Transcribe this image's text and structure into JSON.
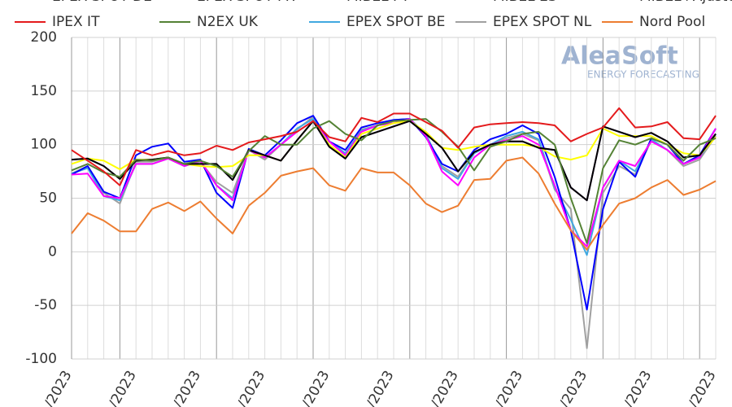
{
  "chart_data": {
    "type": "line",
    "logo": {
      "name": "AleaSoft",
      "tagline": "ENERGY FORECASTING"
    },
    "categories": [
      "/2023",
      null,
      null,
      null,
      "/2023",
      null,
      null,
      null,
      "/2023",
      null,
      null,
      null,
      "/2023",
      null,
      null,
      null,
      "/2023",
      null,
      null,
      null,
      "/2023",
      null,
      null,
      null,
      "/2023",
      null,
      null,
      null,
      "/2023",
      null,
      null,
      null,
      "/2023",
      null,
      null,
      null,
      "/2023",
      null,
      null,
      null,
      "/2023"
    ],
    "ylim": [
      -100,
      200
    ],
    "yticks": [
      -100,
      -50,
      0,
      50,
      100,
      150,
      200
    ],
    "grid": true,
    "series": [
      {
        "name": "EPEX SPOT DE",
        "color": "#0000ff",
        "values": [
          72,
          80,
          56,
          50,
          90,
          98,
          101,
          84,
          86,
          55,
          41,
          96,
          90,
          104,
          120,
          127,
          103,
          95,
          116,
          120,
          123,
          124,
          107,
          82,
          75,
          95,
          105,
          110,
          118,
          110,
          70,
          20,
          -54,
          40,
          84,
          70,
          106,
          100,
          82,
          90,
          115
        ]
      },
      {
        "name": "EPEX SPOT FR",
        "color": "#ff00ff",
        "values": [
          72,
          73,
          52,
          50,
          82,
          82,
          87,
          80,
          85,
          62,
          48,
          95,
          88,
          100,
          112,
          122,
          103,
          90,
          112,
          118,
          120,
          124,
          108,
          75,
          62,
          88,
          100,
          104,
          108,
          100,
          62,
          20,
          5,
          60,
          85,
          80,
          103,
          95,
          82,
          88,
          115
        ]
      },
      {
        "name": "MIBEL PT",
        "color": "#7030a0",
        "values": [
          86,
          87,
          80,
          68,
          85,
          86,
          88,
          82,
          82,
          82,
          67,
          95,
          90,
          85,
          104,
          122,
          98,
          87,
          107,
          112,
          117,
          122,
          110,
          97,
          75,
          93,
          100,
          103,
          103,
          97,
          95,
          60,
          48,
          117,
          112,
          107,
          111,
          103,
          88,
          90,
          110
        ]
      },
      {
        "name": "MIBEL ES",
        "color": "#000000",
        "values": [
          86,
          87,
          80,
          68,
          85,
          86,
          88,
          82,
          82,
          82,
          67,
          95,
          90,
          85,
          104,
          122,
          98,
          87,
          107,
          112,
          117,
          122,
          110,
          97,
          75,
          93,
          100,
          103,
          103,
          97,
          95,
          60,
          48,
          117,
          112,
          107,
          111,
          103,
          88,
          90,
          110
        ]
      },
      {
        "name": "MIBEL+Ajuste",
        "color": "#ffff00",
        "values": [
          82,
          87,
          85,
          77,
          86,
          86,
          88,
          82,
          80,
          79,
          80,
          90,
          90,
          85,
          104,
          122,
          100,
          88,
          110,
          115,
          120,
          122,
          112,
          97,
          95,
          98,
          100,
          100,
          100,
          98,
          89,
          86,
          90,
          115,
          108,
          108,
          108,
          100,
          92,
          90,
          107
        ]
      },
      {
        "name": "IPEX IT",
        "color": "#e41a1c",
        "values": [
          95,
          85,
          75,
          62,
          95,
          90,
          94,
          90,
          92,
          99,
          95,
          102,
          105,
          108,
          112,
          122,
          107,
          103,
          125,
          121,
          129,
          129,
          121,
          113,
          97,
          116,
          119,
          120,
          121,
          120,
          118,
          103,
          110,
          116,
          134,
          116,
          117,
          121,
          106,
          105,
          127
        ]
      },
      {
        "name": "N2EX UK",
        "color": "#548235",
        "values": [
          76,
          82,
          74,
          70,
          86,
          85,
          88,
          82,
          85,
          80,
          70,
          94,
          108,
          100,
          100,
          115,
          122,
          110,
          104,
          118,
          122,
          123,
          124,
          112,
          98,
          76,
          98,
          103,
          110,
          112,
          100,
          50,
          8,
          78,
          104,
          100,
          106,
          100,
          85,
          100,
          106
        ]
      },
      {
        "name": "EPEX SPOT BE",
        "color": "#41a8e0",
        "values": [
          73,
          78,
          52,
          48,
          82,
          82,
          87,
          80,
          85,
          62,
          50,
          95,
          88,
          100,
          115,
          124,
          103,
          92,
          113,
          118,
          123,
          124,
          110,
          78,
          68,
          92,
          100,
          108,
          112,
          105,
          60,
          30,
          -3,
          60,
          85,
          75,
          105,
          95,
          82,
          88,
          110
        ]
      },
      {
        "name": "EPEX SPOT NL",
        "color": "#a0a0a0",
        "values": [
          73,
          80,
          55,
          45,
          84,
          84,
          88,
          80,
          84,
          65,
          55,
          95,
          86,
          100,
          114,
          126,
          103,
          90,
          114,
          118,
          122,
          124,
          108,
          80,
          70,
          92,
          100,
          106,
          110,
          104,
          58,
          40,
          -90,
          55,
          80,
          72,
          104,
          95,
          80,
          86,
          108
        ]
      },
      {
        "name": "Nord Pool",
        "color": "#ed7d31",
        "values": [
          17,
          36,
          29,
          19,
          19,
          40,
          46,
          38,
          47,
          31,
          17,
          43,
          55,
          71,
          75,
          78,
          62,
          57,
          78,
          74,
          74,
          62,
          45,
          37,
          43,
          67,
          68,
          85,
          88,
          73,
          45,
          20,
          2,
          25,
          45,
          50,
          60,
          67,
          53,
          58,
          66
        ]
      }
    ]
  }
}
